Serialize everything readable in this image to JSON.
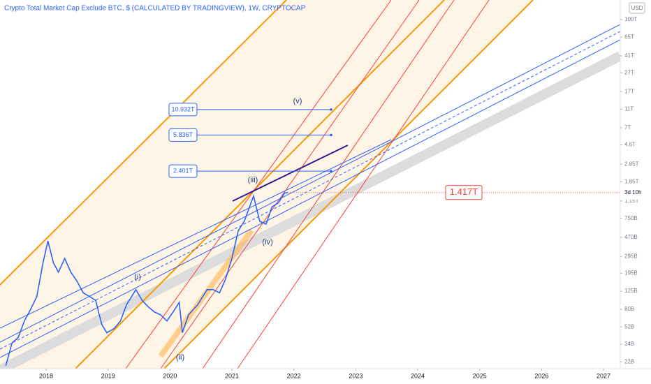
{
  "chart_data": {
    "type": "line",
    "title": "Crypto Total Market Cap Exclude BTC, $ (CALCULATED BY TRADINGVIEW), 1W, CRYPTOCAP",
    "currency": "USD",
    "countdown": "3d 10h",
    "log_scale": true,
    "color": "#2962ff",
    "x": [
      2017.35,
      2017.45,
      2017.55,
      2017.65,
      2017.75,
      2017.85,
      2017.95,
      2018.03,
      2018.12,
      2018.2,
      2018.3,
      2018.4,
      2018.5,
      2018.6,
      2018.7,
      2018.8,
      2018.9,
      2018.98,
      2019.1,
      2019.2,
      2019.3,
      2019.45,
      2019.55,
      2019.65,
      2019.75,
      2019.85,
      2019.95,
      2020.05,
      2020.15,
      2020.2,
      2020.3,
      2020.45,
      2020.6,
      2020.7,
      2020.8,
      2020.9,
      2021.0,
      2021.1,
      2021.2,
      2021.35,
      2021.45,
      2021.55,
      2021.65,
      2021.75,
      2021.85,
      2021.9
    ],
    "values": [
      20,
      35,
      40,
      60,
      80,
      110,
      250,
      430,
      250,
      200,
      280,
      200,
      160,
      120,
      110,
      100,
      55,
      45,
      50,
      60,
      90,
      130,
      100,
      85,
      75,
      70,
      60,
      75,
      95,
      45,
      70,
      90,
      130,
      130,
      120,
      170,
      280,
      550,
      700,
      1300,
      700,
      650,
      1000,
      1100,
      1400,
      1417
    ],
    "value_labels": [
      null,
      null,
      null,
      null,
      null,
      null,
      null,
      null,
      null,
      null,
      null,
      null,
      null,
      null,
      null,
      null,
      null,
      null,
      null,
      null,
      null,
      null,
      null,
      null,
      null,
      null,
      null,
      null,
      null,
      null,
      null,
      null,
      null,
      null,
      null,
      null,
      null,
      null,
      null,
      null,
      null,
      null,
      null,
      null,
      null,
      "1.417T"
    ],
    "targets": [
      {
        "label": "10.932T",
        "value": 10932
      },
      {
        "label": "5.836T",
        "value": 5836
      },
      {
        "label": "2.401T",
        "value": 2401
      }
    ],
    "wave_labels": [
      "(i)",
      "(ii)",
      "(iii)",
      "(iv)",
      "(v)"
    ],
    "xlim": [
      2017.256,
      2027.27
    ],
    "xticks": [
      2018,
      2019,
      2020,
      2021,
      2022,
      2023,
      2024,
      2025,
      2026,
      2027
    ],
    "ylim": [
      18.6,
      162000
    ],
    "yticks": [
      {
        "value": 100000,
        "label": "100T"
      },
      {
        "value": 65000,
        "label": "65T"
      },
      {
        "value": 41000,
        "label": "41T"
      },
      {
        "value": 27000,
        "label": "27T"
      },
      {
        "value": 17000,
        "label": "17T"
      },
      {
        "value": 11000,
        "label": "11T"
      },
      {
        "value": 7000,
        "label": "7T"
      },
      {
        "value": 4600,
        "label": "4.6T"
      },
      {
        "value": 2850,
        "label": "2.85T"
      },
      {
        "value": 1850,
        "label": "1.85T"
      },
      {
        "value": 1150,
        "label": "1.15T"
      },
      {
        "value": 750,
        "label": "750B"
      },
      {
        "value": 470,
        "label": "470B"
      },
      {
        "value": 295,
        "label": "295B"
      },
      {
        "value": 195,
        "label": "195B"
      },
      {
        "value": 125,
        "label": "125B"
      },
      {
        "value": 80,
        "label": "80B"
      },
      {
        "value": 52,
        "label": "52B"
      },
      {
        "value": 34,
        "label": "34B"
      },
      {
        "value": 22,
        "label": "22B"
      }
    ]
  }
}
